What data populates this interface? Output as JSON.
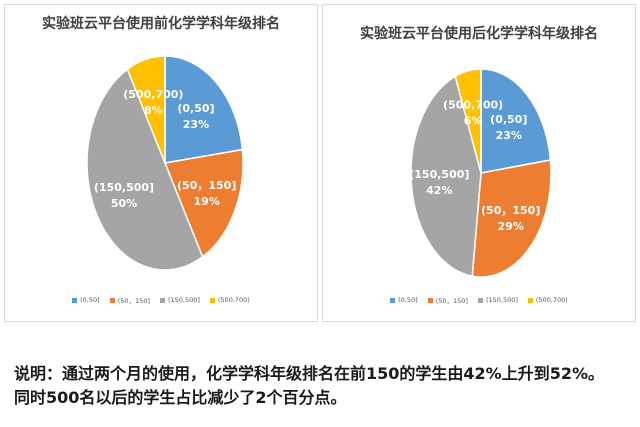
{
  "colors": {
    "c1": "#5b9bd5",
    "c2": "#ed7d31",
    "c3": "#a5a5a5",
    "c4": "#ffc000"
  },
  "chart_data": [
    {
      "type": "pie",
      "title": "实验班云平台使用前化学学科年级排名",
      "slices": [
        {
          "label": "(0,50]",
          "value": 23,
          "percent": "23%"
        },
        {
          "label": "(50，150]",
          "value": 19,
          "percent": "19%"
        },
        {
          "label": "(150,500]",
          "value": 50,
          "percent": "50%"
        },
        {
          "label": "(500,700)",
          "value": 8,
          "percent": "8%"
        }
      ],
      "legend": [
        "(0,50]",
        "(50，150]",
        "(150,500]",
        "(500,700)"
      ],
      "legend_position": "bottom"
    },
    {
      "type": "pie",
      "title": "实验班云平台使用后化学学科年级排名",
      "slices": [
        {
          "label": "(0,50]",
          "value": 23,
          "percent": "23%"
        },
        {
          "label": "(50，150]",
          "value": 29,
          "percent": "29%"
        },
        {
          "label": "(150,500]",
          "value": 42,
          "percent": "42%"
        },
        {
          "label": "(500,700)",
          "value": 6,
          "percent": "6%"
        }
      ],
      "legend": [
        "(0,50]",
        "(50，150]",
        "(150,500]",
        "(500,700)"
      ],
      "legend_position": "bottom"
    }
  ],
  "caption": {
    "line1": "说明：通过两个月的使用，化学学科年级排名在前150的学生由42%上升到52%。",
    "line2": "同时500名以后的学生占比减少了2个百分点。"
  }
}
